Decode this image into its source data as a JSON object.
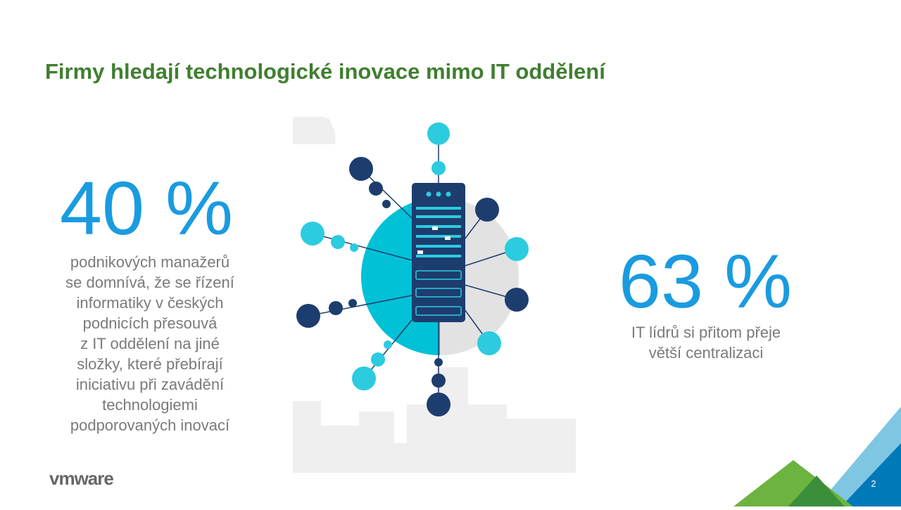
{
  "header": {
    "title": "Firmy hledají technologické inovace mimo IT oddělení"
  },
  "stats": [
    {
      "value": "40 %",
      "lines": [
        "podnikových manažerů",
        "se domnívá, že se řízení",
        "informatiky v českých",
        "podnicích přesouvá",
        "z IT oddělení na jiné",
        "složky, které přebírají",
        "iniciativu při zavádění",
        "technologiemi",
        "podporovaných inovací"
      ]
    },
    {
      "value": "63 %",
      "lines": [
        "IT lídrů si přitom přeje",
        "větší centralizaci"
      ]
    }
  ],
  "footer": {
    "logo": "vmware",
    "page": "2"
  }
}
